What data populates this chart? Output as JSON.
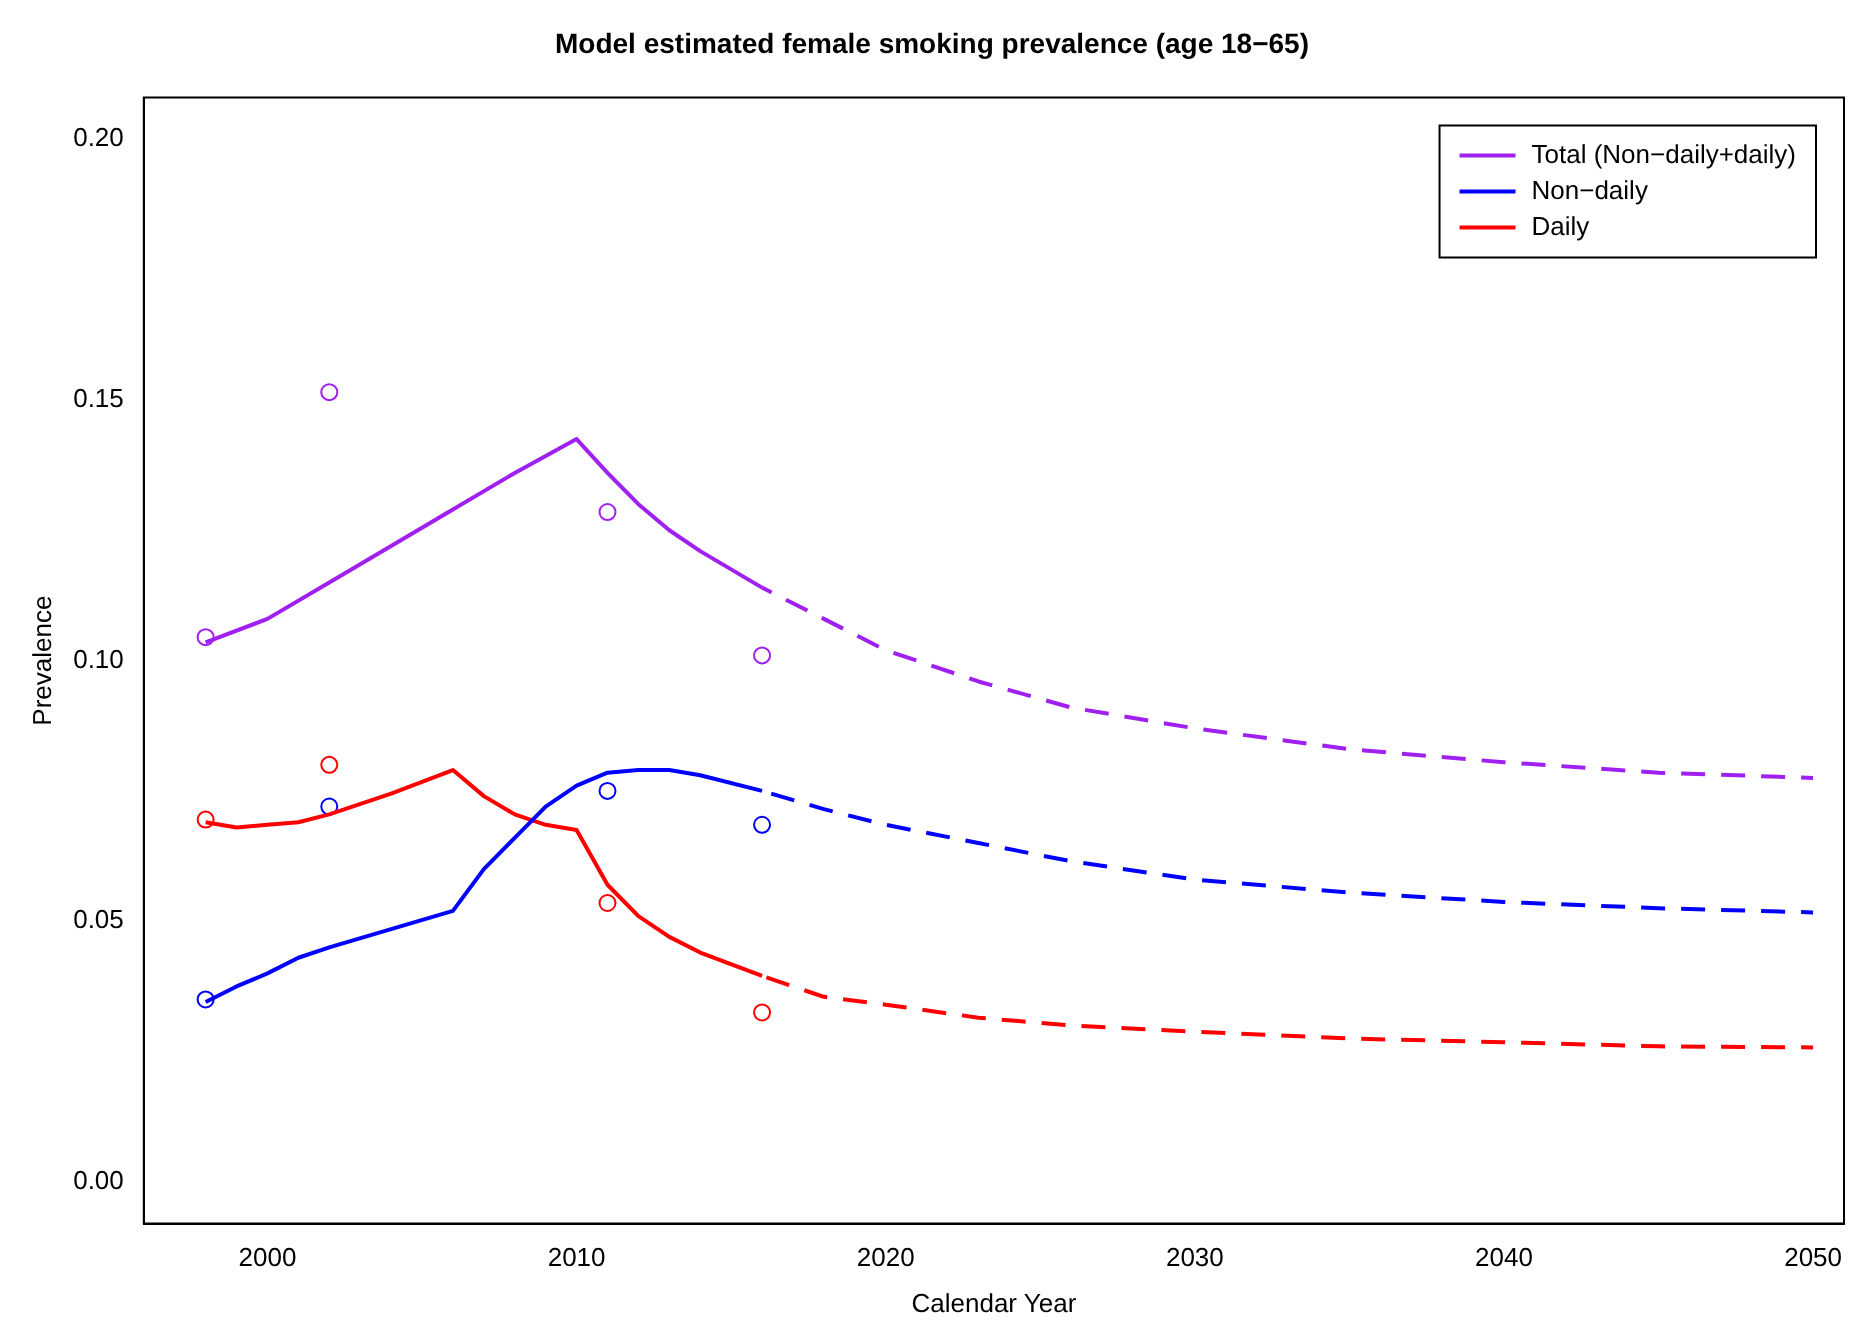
{
  "chart_data": {
    "type": "line",
    "title": "Model estimated female smoking prevalence (age 18−65)",
    "xlabel": "Calendar Year",
    "ylabel": "Prevalence",
    "xlim": [
      1996,
      2051
    ],
    "xticks": [
      2000,
      2010,
      2020,
      2030,
      2040,
      2050
    ],
    "ylim": [
      -0.008,
      0.208
    ],
    "yticks": [
      {
        "value": 0,
        "label": "0.00"
      },
      {
        "value": 0.05,
        "label": "0.05"
      },
      {
        "value": 0.1,
        "label": "0.10"
      },
      {
        "value": 0.15,
        "label": "0.15"
      },
      {
        "value": 0.2,
        "label": "0.20"
      }
    ],
    "grid": false,
    "legend": "top right",
    "series": [
      {
        "name": "Total (Non−daily+daily)",
        "color": "#a020f0",
        "type": "line",
        "marker": "none",
        "line_style": "solid",
        "x": [
          1998,
          2000,
          2002,
          2004,
          2006,
          2008,
          2010,
          2011,
          2012,
          2013,
          2014,
          2016
        ],
        "values": [
          0.1035,
          0.108,
          0.115,
          0.122,
          0.129,
          0.136,
          0.1425,
          0.136,
          0.13,
          0.125,
          0.121,
          0.114
        ]
      },
      {
        "name": "Non−daily",
        "color": "#0000ff",
        "type": "line",
        "marker": "none",
        "line_style": "solid",
        "x": [
          1998,
          1999,
          2000,
          2001,
          2002,
          2004,
          2006,
          2007,
          2008,
          2009,
          2010,
          2011,
          2012,
          2013,
          2014,
          2016
        ],
        "values": [
          0.0345,
          0.0375,
          0.04,
          0.043,
          0.045,
          0.0485,
          0.052,
          0.06,
          0.066,
          0.072,
          0.076,
          0.0785,
          0.079,
          0.079,
          0.078,
          0.075
        ]
      },
      {
        "name": "Daily",
        "color": "#ff0000",
        "type": "line",
        "marker": "none",
        "line_style": "solid",
        "x": [
          1998,
          1999,
          2000,
          2001,
          2002,
          2004,
          2006,
          2007,
          2008,
          2009,
          2010,
          2011,
          2012,
          2013,
          2014,
          2016
        ],
        "values": [
          0.069,
          0.068,
          0.0685,
          0.069,
          0.0705,
          0.0745,
          0.079,
          0.074,
          0.0705,
          0.0685,
          0.0675,
          0.057,
          0.051,
          0.047,
          0.044,
          0.0395
        ]
      },
      {
        "color": "#a020f0",
        "type": "line",
        "marker": "none",
        "line_style": "dashed",
        "x": [
          2016,
          2018,
          2020,
          2023,
          2026,
          2030,
          2035,
          2040,
          2045,
          2050
        ],
        "values": [
          0.114,
          0.108,
          0.102,
          0.096,
          0.091,
          0.087,
          0.083,
          0.0805,
          0.0785,
          0.0775
        ]
      },
      {
        "color": "#0000ff",
        "type": "line",
        "marker": "none",
        "line_style": "dashed",
        "x": [
          2016,
          2018,
          2020,
          2023,
          2026,
          2030,
          2035,
          2040,
          2045,
          2050
        ],
        "values": [
          0.075,
          0.0715,
          0.0685,
          0.065,
          0.0615,
          0.058,
          0.0555,
          0.0537,
          0.0525,
          0.0517
        ]
      },
      {
        "color": "#ff0000",
        "type": "line",
        "marker": "none",
        "line_style": "dashed",
        "x": [
          2016,
          2018,
          2020,
          2023,
          2026,
          2030,
          2035,
          2040,
          2045,
          2050
        ],
        "values": [
          0.0395,
          0.0355,
          0.034,
          0.0315,
          0.03,
          0.0288,
          0.0275,
          0.0268,
          0.026,
          0.0258
        ]
      },
      {
        "color": "#a020f0",
        "type": "scatter",
        "marker": "circle",
        "x": [
          1998,
          2002,
          2011,
          2016
        ],
        "values": [
          0.1045,
          0.1515,
          0.1285,
          0.101
        ]
      },
      {
        "color": "#0000ff",
        "type": "scatter",
        "marker": "circle",
        "x": [
          1998,
          2002,
          2011,
          2016
        ],
        "values": [
          0.035,
          0.072,
          0.075,
          0.0685
        ]
      },
      {
        "color": "#ff0000",
        "type": "scatter",
        "marker": "circle",
        "x": [
          1998,
          2002,
          2011,
          2016
        ],
        "values": [
          0.0695,
          0.08,
          0.0535,
          0.0325
        ]
      }
    ]
  }
}
